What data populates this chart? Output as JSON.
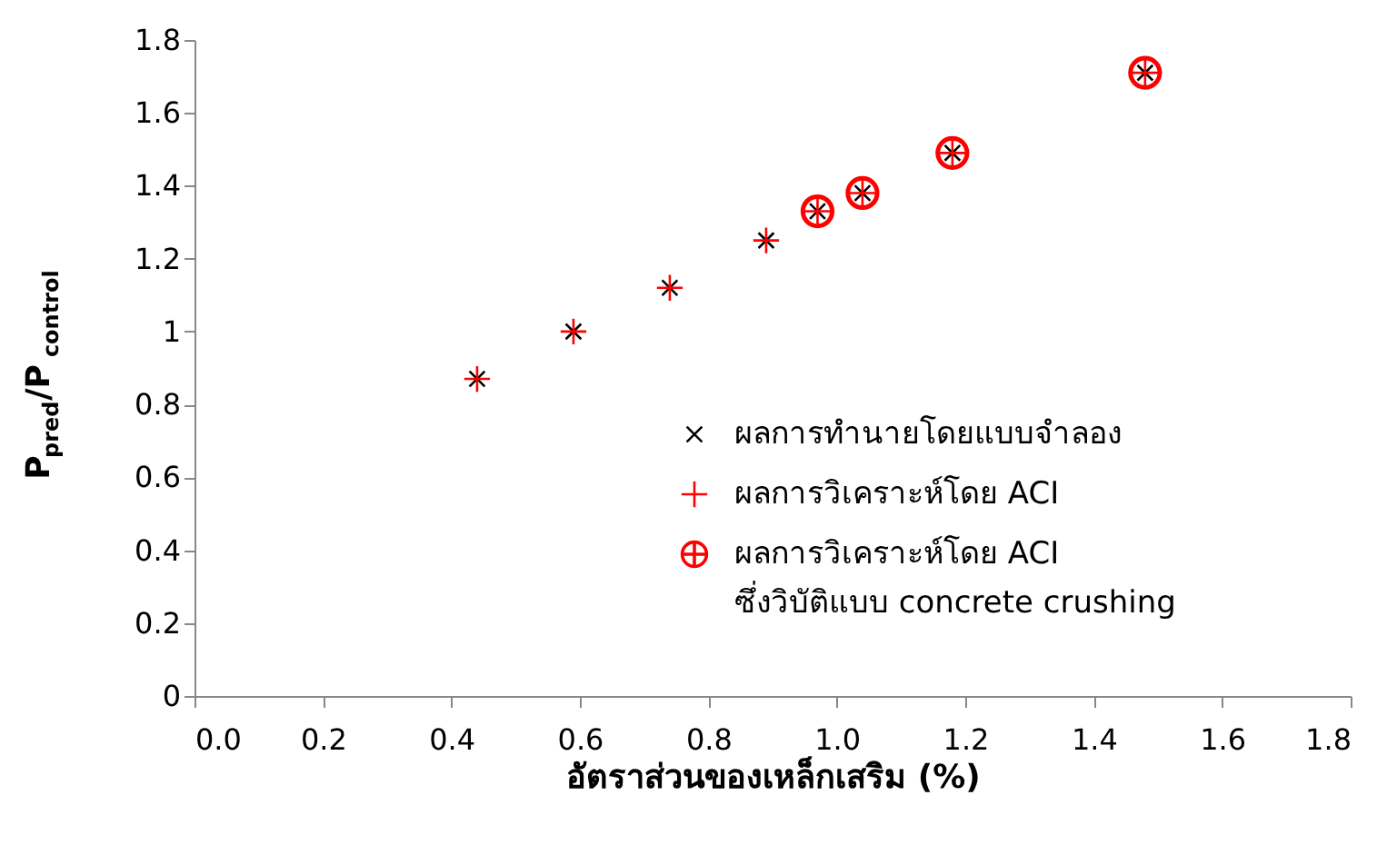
{
  "chart_data": {
    "type": "scatter",
    "xlabel": "อัตราส่วนของเหล็กเสริม (%)",
    "ylabel": "P$_{pred}$/P$_{control}$",
    "x": [
      0.44,
      0.59,
      0.74,
      0.89,
      0.97,
      1.04,
      1.18,
      1.48
    ],
    "series": [
      {
        "name": "ผลการทำนายโดยแบบจำลอง",
        "color": "#000000",
        "marker": "cross",
        "values": [
          0.87,
          1.0,
          1.12,
          1.25,
          1.33,
          1.38,
          1.49,
          1.71
        ]
      },
      {
        "name": "ผลการวิเคราะห์โดย ACI",
        "color": "#ff0000",
        "marker": "plus",
        "values": [
          0.87,
          1.0,
          1.12,
          1.25,
          1.33,
          1.38,
          1.49,
          1.71
        ]
      },
      {
        "name": "ผลการวิเคราะห์โดย ACI\nซึ่งวิบัติแบบ concrete crushing",
        "color": "#ff0000",
        "values": [
          null,
          null,
          null,
          null,
          1.33,
          1.38,
          1.49,
          1.71
        ]
      }
    ],
    "xlim": [
      0,
      1.8
    ],
    "xticks": [
      {
        "value": 0,
        "label": "0.0"
      },
      {
        "value": 0.2,
        "label": "0.2"
      },
      {
        "value": 0.4,
        "label": "0.4"
      },
      {
        "value": 0.6,
        "label": "0.6"
      },
      {
        "value": 0.8,
        "label": "0.8"
      },
      {
        "value": 1.0,
        "label": "1.0"
      },
      {
        "value": 1.2,
        "label": "1.2"
      },
      {
        "value": 1.4,
        "label": "1.4"
      },
      {
        "value": 1.6,
        "label": "1.6"
      },
      {
        "value": 1.8,
        "label": "1.8"
      }
    ],
    "ylim": [
      0,
      1.8
    ],
    "yticks": [
      {
        "value": 0,
        "label": "0"
      },
      0.2,
      0.4,
      0.6,
      0.8,
      {
        "value": 1,
        "label": "1"
      },
      1.2,
      1.4,
      1.6,
      1.8
    ],
    "grid": false,
    "legend": "bottom right"
  }
}
